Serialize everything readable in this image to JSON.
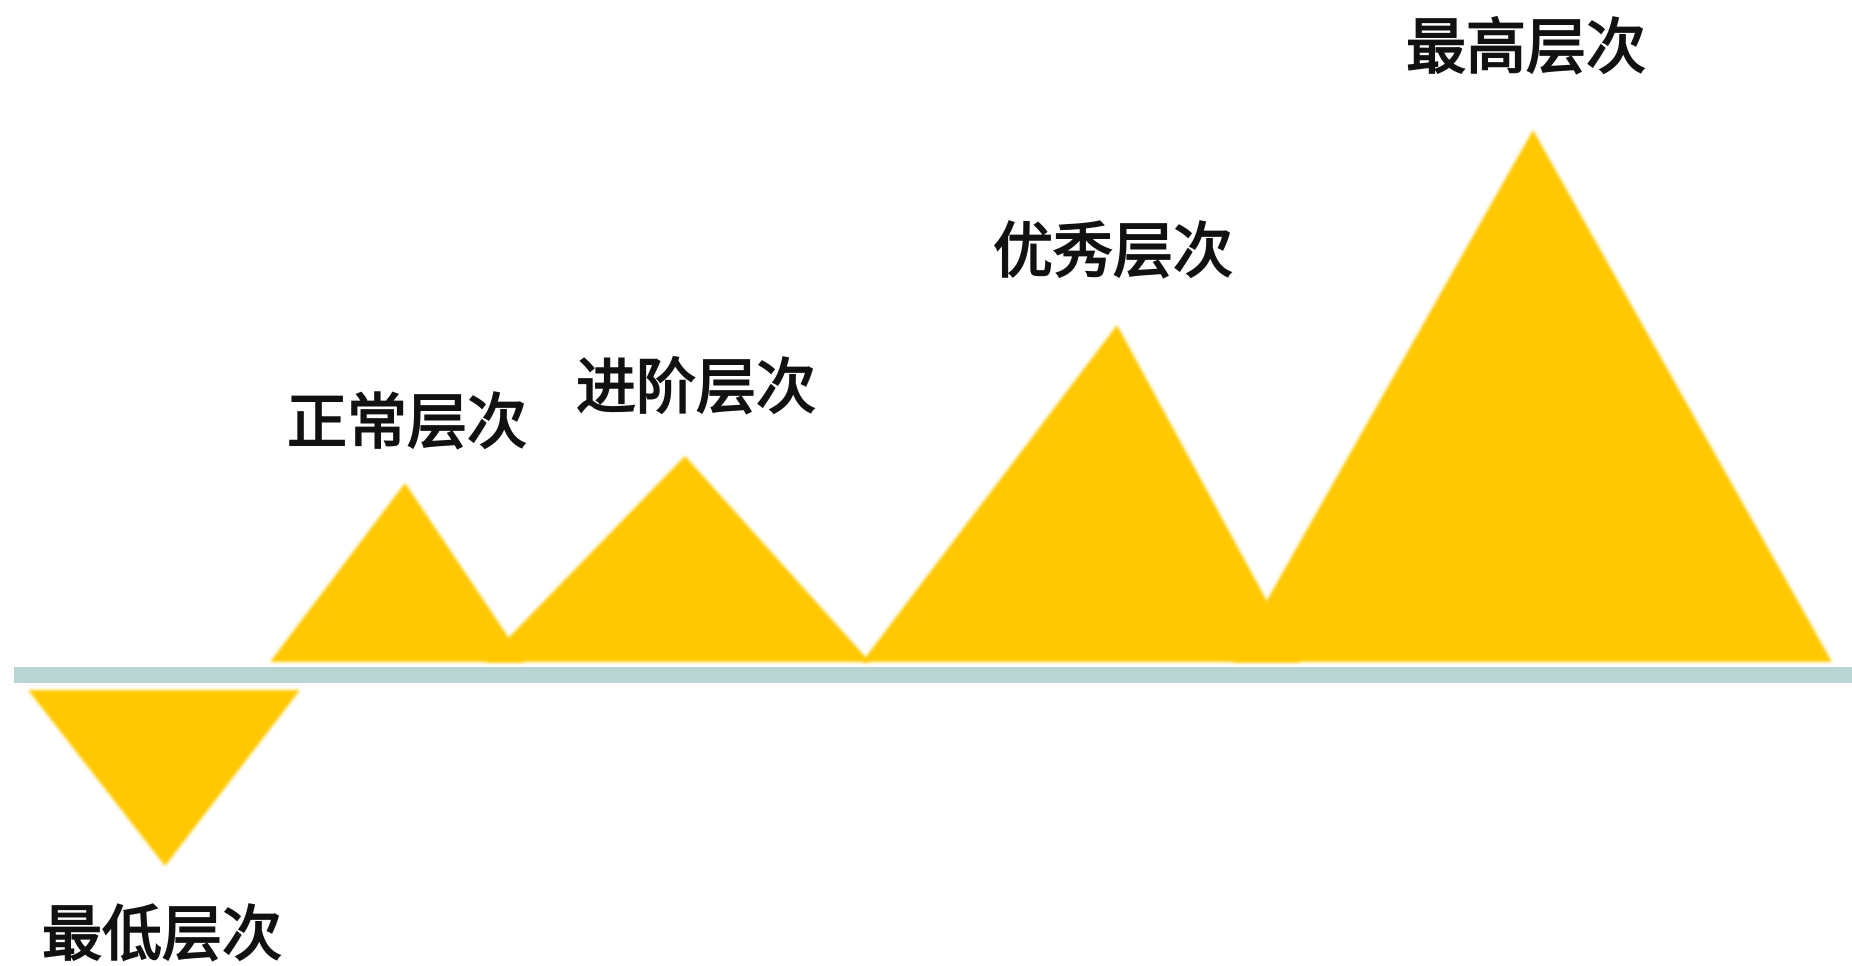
{
  "colors": {
    "triangle_fill": "#FFC800",
    "baseline": "#B9D4D2",
    "label_text": "#111111",
    "background": "#FFFFFF"
  },
  "levels": [
    {
      "label": "最低层次"
    },
    {
      "label": "正常层次"
    },
    {
      "label": "进阶层次"
    },
    {
      "label": "优秀层次"
    },
    {
      "label": "最高层次"
    }
  ]
}
